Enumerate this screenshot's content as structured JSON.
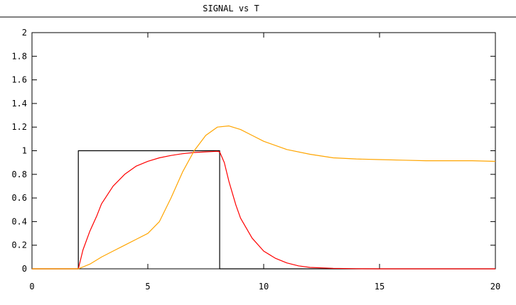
{
  "chart_data": {
    "type": "line",
    "title": "SIGNAL vs T",
    "xlabel": "",
    "ylabel": "",
    "xlim": [
      0,
      20
    ],
    "ylim": [
      0,
      2
    ],
    "grid": false,
    "legend": "none",
    "x_ticks": [
      0,
      5,
      10,
      15,
      20
    ],
    "x_tick_labels": [
      "0",
      "5",
      "10",
      "15",
      "20"
    ],
    "y_ticks": [
      0,
      0.2,
      0.4,
      0.6,
      0.8,
      1,
      1.2,
      1.4,
      1.6,
      1.8,
      2
    ],
    "y_tick_labels": [
      "0",
      "0.2",
      "0.4",
      "0.6",
      "0.8",
      "1",
      "1.2",
      "1.4",
      "1.6",
      "1.8",
      "2"
    ],
    "series": [
      {
        "color": "#000000",
        "x": [
          0,
          2,
          2,
          8.1,
          8.1,
          20
        ],
        "y": [
          0,
          0,
          1,
          1,
          0,
          0
        ]
      },
      {
        "color": "#ff0000",
        "x": [
          0,
          2,
          2.2,
          2.5,
          2.8,
          3,
          3.5,
          4,
          4.5,
          5,
          5.5,
          6,
          6.5,
          7,
          7.5,
          8,
          8.1,
          8.3,
          8.5,
          8.8,
          9,
          9.5,
          10,
          10.5,
          11,
          11.5,
          12,
          13,
          14,
          15,
          17,
          20
        ],
        "y": [
          0,
          0,
          0.16,
          0.32,
          0.45,
          0.55,
          0.7,
          0.8,
          0.87,
          0.91,
          0.94,
          0.96,
          0.975,
          0.985,
          0.99,
          0.995,
          0.99,
          0.9,
          0.74,
          0.54,
          0.43,
          0.26,
          0.15,
          0.09,
          0.05,
          0.025,
          0.012,
          0.004,
          0.001,
          0,
          0,
          0
        ]
      },
      {
        "color": "#ffa500",
        "x": [
          0,
          2,
          2.5,
          3,
          3.5,
          4,
          4.5,
          5,
          5.5,
          6,
          6.5,
          7,
          7.5,
          8,
          8.5,
          9,
          9.5,
          10,
          11,
          12,
          13,
          14,
          15,
          16,
          17,
          18,
          19,
          20
        ],
        "y": [
          0,
          0,
          0.04,
          0.1,
          0.15,
          0.2,
          0.25,
          0.3,
          0.4,
          0.6,
          0.82,
          1.0,
          1.13,
          1.2,
          1.21,
          1.18,
          1.13,
          1.08,
          1.01,
          0.97,
          0.94,
          0.93,
          0.925,
          0.92,
          0.915,
          0.915,
          0.915,
          0.91
        ]
      }
    ]
  }
}
